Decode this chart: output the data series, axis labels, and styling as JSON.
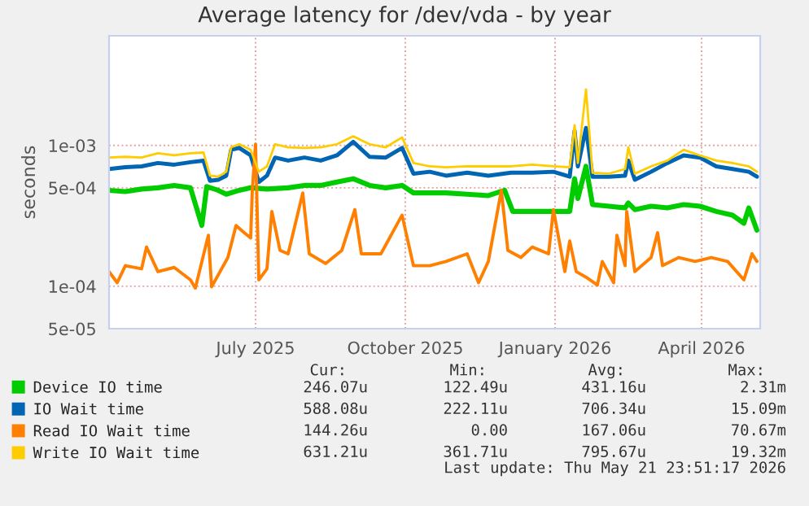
{
  "chart_data": {
    "type": "line",
    "title": "Average latency for /dev/vda - by year",
    "ylabel": "seconds",
    "log": "y",
    "grid": true,
    "legend": "bottom",
    "line_style": "solid",
    "marker": "none",
    "xlim": [
      "2025-04-17",
      "2026-05-22"
    ],
    "xticks": [
      {
        "value": "2025-07-16",
        "label": "July 2025"
      },
      {
        "value": "2025-10-16",
        "label": "October 2025"
      },
      {
        "value": "2026-01-16",
        "label": "January 2026"
      },
      {
        "value": "2026-04-16",
        "label": "April 2026"
      }
    ],
    "ylim": [
      5e-05,
      0.006
    ],
    "yticks": [
      {
        "value": 5e-05,
        "label": "5e-05"
      },
      {
        "value": 0.0001,
        "label": "1e-04"
      },
      {
        "value": 0.0005,
        "label": "5e-04"
      },
      {
        "value": 0.001,
        "label": "1e-03"
      }
    ],
    "series": [
      {
        "name": "Device IO time",
        "color": "#00cc00",
        "x": [
          "2025-04-17",
          "2025-04-27",
          "2025-05-07",
          "2025-05-17",
          "2025-05-27",
          "2025-06-06",
          "2025-06-13",
          "2025-06-16",
          "2025-06-23",
          "2025-06-28",
          "2025-07-06",
          "2025-07-13",
          "2025-07-23",
          "2025-08-05",
          "2025-08-15",
          "2025-08-25",
          "2025-09-04",
          "2025-09-14",
          "2025-09-24",
          "2025-10-04",
          "2025-10-14",
          "2025-10-21",
          "2025-10-31",
          "2025-11-10",
          "2025-11-23",
          "2025-12-06",
          "2025-12-16",
          "2025-12-21",
          "2026-01-02",
          "2026-01-15",
          "2026-01-25",
          "2026-01-28",
          "2026-01-30",
          "2026-02-04",
          "2026-02-08",
          "2026-02-18",
          "2026-02-28",
          "2026-03-02",
          "2026-03-06",
          "2026-03-16",
          "2026-03-26",
          "2026-04-05",
          "2026-04-15",
          "2026-04-25",
          "2026-05-05",
          "2026-05-12",
          "2026-05-15",
          "2026-05-20"
        ],
        "values": [
          0.00048,
          0.00047,
          0.00049,
          0.0005,
          0.00052,
          0.0005,
          0.00027,
          0.00051,
          0.00048,
          0.00045,
          0.00048,
          0.0005,
          0.00049,
          0.0005,
          0.00052,
          0.00052,
          0.00055,
          0.00058,
          0.00052,
          0.0005,
          0.00052,
          0.00046,
          0.00046,
          0.00046,
          0.00045,
          0.00044,
          0.00048,
          0.00034,
          0.00034,
          0.00034,
          0.00034,
          0.00058,
          0.00042,
          0.00071,
          0.00038,
          0.00037,
          0.00036,
          0.00039,
          0.00035,
          0.00037,
          0.00036,
          0.00038,
          0.00037,
          0.00034,
          0.00032,
          0.00028,
          0.00036,
          0.00025
        ]
      },
      {
        "name": "IO Wait time",
        "color": "#0066b3",
        "x": [
          "2025-04-17",
          "2025-04-27",
          "2025-05-07",
          "2025-05-17",
          "2025-05-27",
          "2025-06-06",
          "2025-06-14",
          "2025-06-18",
          "2025-06-23",
          "2025-06-28",
          "2025-07-01",
          "2025-07-06",
          "2025-07-13",
          "2025-07-18",
          "2025-07-23",
          "2025-07-28",
          "2025-08-05",
          "2025-08-15",
          "2025-08-25",
          "2025-09-04",
          "2025-09-14",
          "2025-09-24",
          "2025-10-04",
          "2025-10-14",
          "2025-10-21",
          "2025-10-31",
          "2025-11-10",
          "2025-11-23",
          "2025-12-06",
          "2025-12-20",
          "2026-01-02",
          "2026-01-15",
          "2026-01-25",
          "2026-01-28",
          "2026-01-30",
          "2026-02-04",
          "2026-02-08",
          "2026-02-18",
          "2026-02-28",
          "2026-03-02",
          "2026-03-06",
          "2026-03-16",
          "2026-03-26",
          "2026-04-05",
          "2026-04-15",
          "2026-04-25",
          "2026-05-05",
          "2026-05-15",
          "2026-05-20"
        ],
        "values": [
          0.00068,
          0.0007,
          0.00071,
          0.00075,
          0.00073,
          0.00076,
          0.00078,
          0.00056,
          0.00057,
          0.00061,
          0.00093,
          0.00096,
          0.00085,
          0.00055,
          0.00061,
          0.00082,
          0.00078,
          0.00082,
          0.00078,
          0.00085,
          0.00106,
          0.00083,
          0.00082,
          0.00096,
          0.00063,
          0.00065,
          0.00061,
          0.00064,
          0.00061,
          0.00064,
          0.00064,
          0.00065,
          0.0006,
          0.00127,
          0.00071,
          0.00133,
          0.0006,
          0.0006,
          0.00061,
          0.00078,
          0.00057,
          0.00065,
          0.00075,
          0.00085,
          0.00082,
          0.00071,
          0.00068,
          0.00065,
          0.0006
        ]
      },
      {
        "name": "Read IO Wait time",
        "color": "#ff8000",
        "x": [
          "2025-04-17",
          "2025-04-22",
          "2025-04-27",
          "2025-05-07",
          "2025-05-10",
          "2025-05-17",
          "2025-05-27",
          "2025-06-06",
          "2025-06-09",
          "2025-06-17",
          "2025-06-19",
          "2025-06-29",
          "2025-07-04",
          "2025-07-09",
          "2025-07-13",
          "2025-07-14",
          "2025-07-16",
          "2025-07-18",
          "2025-07-23",
          "2025-07-26",
          "2025-07-31",
          "2025-08-05",
          "2025-08-14",
          "2025-08-18",
          "2025-08-28",
          "2025-09-07",
          "2025-09-15",
          "2025-09-19",
          "2025-10-01",
          "2025-10-14",
          "2025-10-21",
          "2025-10-31",
          "2025-11-10",
          "2025-11-23",
          "2025-11-30",
          "2025-12-06",
          "2025-12-14",
          "2025-12-18",
          "2025-12-26",
          "2026-01-02",
          "2026-01-12",
          "2026-01-15",
          "2026-01-22",
          "2026-01-25",
          "2026-01-29",
          "2026-02-04",
          "2026-02-11",
          "2026-02-14",
          "2026-02-21",
          "2026-02-23",
          "2026-02-28",
          "2026-03-01",
          "2026-03-06",
          "2026-03-16",
          "2026-03-20",
          "2026-03-23",
          "2026-04-02",
          "2026-04-12",
          "2026-04-22",
          "2026-05-02",
          "2026-05-12",
          "2026-05-17",
          "2026-05-20"
        ],
        "values": [
          0.000127,
          0.000106,
          0.00014,
          0.000133,
          0.00019,
          0.000127,
          0.000136,
          0.000111,
          9.7e-05,
          0.00023,
          9.9e-05,
          0.00016,
          0.00027,
          0.00024,
          0.00022,
          0.00048,
          0.00102,
          0.000111,
          0.000133,
          0.00034,
          0.00018,
          0.00017,
          0.00046,
          0.00017,
          0.000145,
          0.00018,
          0.00035,
          0.00017,
          0.00017,
          0.00032,
          0.00014,
          0.00014,
          0.00015,
          0.00017,
          0.000106,
          0.00015,
          0.00048,
          0.00018,
          0.00016,
          0.00019,
          0.00017,
          0.00035,
          0.000127,
          0.00021,
          0.000127,
          0.000116,
          0.000102,
          0.00015,
          0.000106,
          0.00023,
          0.00014,
          0.00034,
          0.000127,
          0.00016,
          0.00024,
          0.00014,
          0.00016,
          0.00015,
          0.00016,
          0.00015,
          0.000111,
          0.00017,
          0.00015
        ]
      },
      {
        "name": "Write IO Wait time",
        "color": "#ffcc00",
        "x": [
          "2025-04-17",
          "2025-04-27",
          "2025-05-07",
          "2025-05-17",
          "2025-05-27",
          "2025-06-06",
          "2025-06-14",
          "2025-06-18",
          "2025-06-23",
          "2025-06-28",
          "2025-07-01",
          "2025-07-06",
          "2025-07-13",
          "2025-07-18",
          "2025-07-23",
          "2025-07-28",
          "2025-08-05",
          "2025-08-15",
          "2025-08-25",
          "2025-09-04",
          "2025-09-14",
          "2025-09-24",
          "2025-10-04",
          "2025-10-14",
          "2025-10-21",
          "2025-10-31",
          "2025-11-10",
          "2025-11-23",
          "2025-12-06",
          "2025-12-20",
          "2026-01-02",
          "2026-01-15",
          "2026-01-25",
          "2026-01-28",
          "2026-01-30",
          "2026-02-04",
          "2026-02-08",
          "2026-02-18",
          "2026-02-28",
          "2026-03-02",
          "2026-03-06",
          "2026-03-16",
          "2026-03-26",
          "2026-04-05",
          "2026-04-15",
          "2026-04-25",
          "2026-05-05",
          "2026-05-15",
          "2026-05-20"
        ],
        "values": [
          0.00082,
          0.00083,
          0.00082,
          0.00088,
          0.00085,
          0.00088,
          0.00089,
          0.00061,
          0.0006,
          0.00065,
          0.00097,
          0.00102,
          0.00093,
          0.00065,
          0.00071,
          0.00102,
          0.00097,
          0.00096,
          0.00097,
          0.00102,
          0.00116,
          0.00102,
          0.00097,
          0.00114,
          0.00075,
          0.00071,
          0.0007,
          0.00071,
          0.00071,
          0.00071,
          0.00073,
          0.00071,
          0.0007,
          0.00139,
          0.00075,
          0.0025,
          0.00064,
          0.00063,
          0.00068,
          0.00097,
          0.00063,
          0.00071,
          0.00078,
          0.00093,
          0.00085,
          0.00078,
          0.00075,
          0.00071,
          0.00065
        ]
      }
    ],
    "annotations": [
      "Cur:",
      "Min:",
      "Avg:",
      "Max:",
      "246.07u",
      "122.49u",
      "431.16u",
      "2.31m",
      "588.08u",
      "222.11u",
      "706.34u",
      "15.09m",
      "144.26u",
      "0.00",
      "167.06u",
      "70.67m",
      "631.21u",
      "361.71u",
      "795.67u",
      "19.32m",
      "Last update: Thu May 21 23:51:17 2026"
    ]
  }
}
